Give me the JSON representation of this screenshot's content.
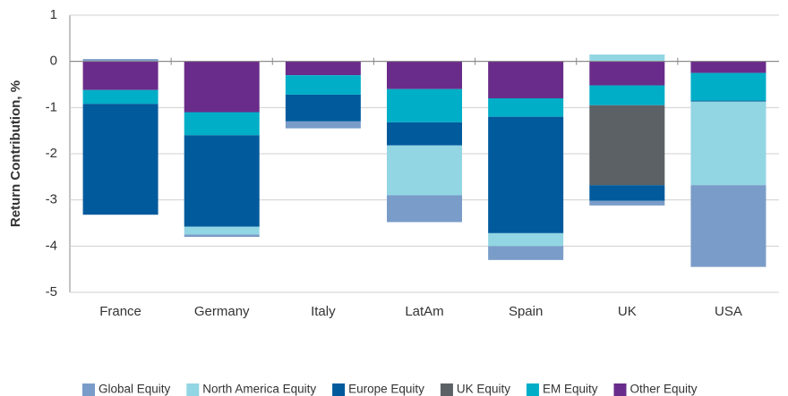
{
  "chart_data": {
    "type": "stacked_bar",
    "y_label": "Return Contribution, %",
    "categories": [
      "France",
      "Germany",
      "Italy",
      "LatAm",
      "Spain",
      "UK",
      "USA"
    ],
    "series": [
      {
        "name": "Global Equity",
        "color": "#7a9cc8",
        "values": [
          0.05,
          -0.05,
          -0.15,
          -0.58,
          -0.3,
          -0.1,
          -1.77
        ]
      },
      {
        "name": "North America Equity",
        "color": "#92d5e3",
        "values": [
          0,
          -0.17,
          0,
          -1.08,
          -0.28,
          0.15,
          -1.81
        ]
      },
      {
        "name": "Europe Equity",
        "color": "#005a9c",
        "values": [
          -2.4,
          -1.98,
          -0.58,
          -0.5,
          -2.52,
          -0.34,
          -0.02
        ]
      },
      {
        "name": "UK Equity",
        "color": "#5c6166",
        "values": [
          0,
          0,
          0,
          0,
          0,
          -1.73,
          0
        ]
      },
      {
        "name": "EM Equity",
        "color": "#00aec7",
        "values": [
          -0.3,
          -0.5,
          -0.42,
          -0.72,
          -0.4,
          -0.43,
          -0.6
        ]
      },
      {
        "name": "Other Equity",
        "color": "#6a2c8a",
        "values": [
          -0.62,
          -1.1,
          -0.3,
          -0.6,
          -0.8,
          -0.52,
          -0.25
        ]
      }
    ],
    "ylim": [
      -5,
      1
    ],
    "yticks": [
      -5,
      -4,
      -3,
      -2,
      -1,
      0,
      1
    ],
    "grid": true,
    "legend": "bottom"
  }
}
